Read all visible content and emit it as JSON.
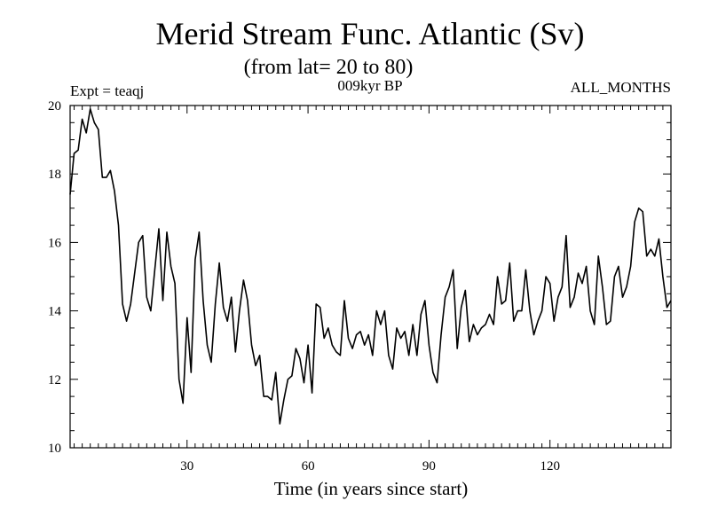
{
  "chart_data": {
    "type": "line",
    "title": "Merid Stream Func. Atlantic (Sv)",
    "subtitle": "(from lat= 20 to 80)",
    "experiment_label": "Expt = teaqj",
    "period_label": "009kyr BP",
    "months_label": "ALL_MONTHS",
    "xlabel": "Time (in years since start)",
    "ylabel": "",
    "xlim": [
      1,
      150
    ],
    "ylim": [
      10,
      20
    ],
    "x_ticks": [
      30,
      60,
      90,
      120
    ],
    "y_ticks": [
      10,
      12,
      14,
      16,
      18,
      20
    ],
    "series": [
      {
        "name": "Merid Stream Func. Atlantic",
        "x_start": 1,
        "x_step": 1,
        "values": [
          17.4,
          18.6,
          18.7,
          19.6,
          19.2,
          19.9,
          19.5,
          19.3,
          17.9,
          17.9,
          18.1,
          17.5,
          16.5,
          14.2,
          13.7,
          14.2,
          15.1,
          16.0,
          16.2,
          14.4,
          14.0,
          15.2,
          16.4,
          14.3,
          16.3,
          15.3,
          14.8,
          12.0,
          11.3,
          13.8,
          12.2,
          15.5,
          16.3,
          14.3,
          13.0,
          12.5,
          14.2,
          15.4,
          14.1,
          13.7,
          14.4,
          12.8,
          14.0,
          14.9,
          14.3,
          13.0,
          12.4,
          12.7,
          11.5,
          11.5,
          11.4,
          12.2,
          10.7,
          11.4,
          12.0,
          12.1,
          12.9,
          12.6,
          11.9,
          13.0,
          11.6,
          14.2,
          14.1,
          13.2,
          13.5,
          13.0,
          12.8,
          12.7,
          14.3,
          13.2,
          12.9,
          13.3,
          13.4,
          13.0,
          13.3,
          12.7,
          14.0,
          13.6,
          14.0,
          12.7,
          12.3,
          13.5,
          13.2,
          13.4,
          12.7,
          13.6,
          12.7,
          13.9,
          14.3,
          13.0,
          12.2,
          11.9,
          13.3,
          14.4,
          14.7,
          15.2,
          12.9,
          14.1,
          14.6,
          13.1,
          13.6,
          13.3,
          13.5,
          13.6,
          13.9,
          13.6,
          15.0,
          14.2,
          14.3,
          15.4,
          13.7,
          14.0,
          14.0,
          15.2,
          14.0,
          13.3,
          13.7,
          14.0,
          15.0,
          14.8,
          13.7,
          14.4,
          14.7,
          16.2,
          14.1,
          14.4,
          15.1,
          14.8,
          15.3,
          14.0,
          13.6,
          15.6,
          14.7,
          13.6,
          13.7,
          15.0,
          15.3,
          14.4,
          14.7,
          15.3,
          16.6,
          17.0,
          16.9,
          15.6,
          15.8,
          15.6,
          16.1,
          15.0,
          14.1,
          14.3
        ]
      }
    ]
  }
}
